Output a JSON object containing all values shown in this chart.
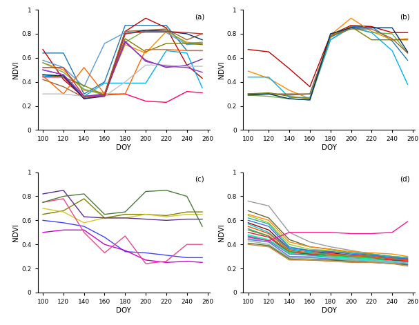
{
  "doy": [
    100,
    120,
    140,
    160,
    180,
    200,
    220,
    240,
    255
  ],
  "subplot_labels": [
    "(a)",
    "(b)",
    "(c)",
    "(d)"
  ],
  "xlabel": "DOY",
  "ylabel": "NDVI",
  "xlim_left": [
    95,
    262
  ],
  "xlim_right": [
    95,
    270
  ],
  "ylim": [
    0,
    1
  ],
  "xticks": [
    100,
    120,
    140,
    160,
    180,
    200,
    220,
    240,
    260
  ],
  "yticks": [
    0,
    0.2,
    0.4,
    0.6,
    0.8,
    1
  ],
  "series_a": [
    {
      "color": "#1F77B4",
      "y": [
        0.64,
        0.64,
        0.3,
        0.4,
        0.87,
        0.87,
        0.87,
        0.66,
        0.66
      ]
    },
    {
      "color": "#c00000",
      "y": [
        0.67,
        0.42,
        0.27,
        0.3,
        0.82,
        0.93,
        0.85,
        0.54,
        0.43
      ]
    },
    {
      "color": "#FF8C00",
      "y": [
        0.56,
        0.5,
        0.33,
        0.31,
        0.71,
        0.64,
        0.82,
        0.73,
        0.72
      ]
    },
    {
      "color": "#5B9BD5",
      "y": [
        0.58,
        0.52,
        0.36,
        0.72,
        0.81,
        0.81,
        0.81,
        0.71,
        0.72
      ]
    },
    {
      "color": "#70AD47",
      "y": [
        0.56,
        0.48,
        0.34,
        0.29,
        0.73,
        0.83,
        0.83,
        0.72,
        0.73
      ]
    },
    {
      "color": "#7030A0",
      "y": [
        0.5,
        0.46,
        0.28,
        0.3,
        0.73,
        0.58,
        0.52,
        0.54,
        0.59
      ]
    },
    {
      "color": "#00B0F0",
      "y": [
        0.45,
        0.44,
        0.28,
        0.39,
        0.39,
        0.39,
        0.66,
        0.64,
        0.35
      ]
    },
    {
      "color": "#FF0066",
      "y": [
        0.44,
        0.44,
        0.26,
        0.29,
        0.3,
        0.24,
        0.23,
        0.32,
        0.31
      ]
    },
    {
      "color": "#996633",
      "y": [
        0.42,
        0.36,
        0.27,
        0.3,
        0.82,
        0.83,
        0.84,
        0.75,
        0.8
      ]
    },
    {
      "color": "#808000",
      "y": [
        0.46,
        0.44,
        0.37,
        0.29,
        0.76,
        0.65,
        0.72,
        0.72,
        0.71
      ]
    },
    {
      "color": "#FF6600",
      "y": [
        0.45,
        0.3,
        0.52,
        0.3,
        0.3,
        0.67,
        0.67,
        0.66,
        0.66
      ]
    },
    {
      "color": "#C0C0C0",
      "y": [
        0.3,
        0.3,
        0.28,
        0.28,
        0.4,
        0.54,
        0.54,
        0.53,
        0.53
      ]
    },
    {
      "color": "#9933CC",
      "y": [
        0.5,
        0.46,
        0.28,
        0.29,
        0.74,
        0.57,
        0.53,
        0.52,
        0.48
      ]
    },
    {
      "color": "#003366",
      "y": [
        0.46,
        0.45,
        0.26,
        0.28,
        0.8,
        0.83,
        0.82,
        0.8,
        0.75
      ]
    },
    {
      "color": "#CC3333",
      "y": [
        0.52,
        0.52,
        0.28,
        0.28,
        0.8,
        0.82,
        0.82,
        0.81,
        0.8
      ]
    }
  ],
  "series_b": [
    {
      "color": "#1F77B4",
      "y": [
        0.3,
        0.3,
        0.29,
        0.3,
        0.77,
        0.86,
        0.86,
        0.74,
        0.58
      ]
    },
    {
      "color": "#c00000",
      "y": [
        0.67,
        0.65,
        0.51,
        0.36,
        0.79,
        0.87,
        0.86,
        0.81,
        0.81
      ]
    },
    {
      "color": "#FF8C00",
      "y": [
        0.49,
        0.43,
        0.33,
        0.26,
        0.79,
        0.93,
        0.82,
        0.75,
        0.76
      ]
    },
    {
      "color": "#70AD47",
      "y": [
        0.29,
        0.28,
        0.26,
        0.25,
        0.75,
        0.85,
        0.81,
        0.8,
        0.64
      ]
    },
    {
      "color": "#00B0F0",
      "y": [
        0.44,
        0.44,
        0.27,
        0.27,
        0.75,
        0.86,
        0.81,
        0.66,
        0.38
      ]
    },
    {
      "color": "#996633",
      "y": [
        0.3,
        0.3,
        0.3,
        0.3,
        0.78,
        0.84,
        0.84,
        0.76,
        0.64
      ]
    },
    {
      "color": "#808000",
      "y": [
        0.3,
        0.31,
        0.28,
        0.26,
        0.78,
        0.86,
        0.75,
        0.75,
        0.75
      ]
    },
    {
      "color": "#003366",
      "y": [
        0.29,
        0.3,
        0.26,
        0.25,
        0.8,
        0.85,
        0.85,
        0.85,
        0.65
      ]
    }
  ],
  "series_c": [
    {
      "color": "#4040FF",
      "y": [
        0.6,
        0.58,
        0.55,
        0.46,
        0.34,
        0.33,
        0.31,
        0.29,
        0.29
      ]
    },
    {
      "color": "#808000",
      "y": [
        0.65,
        0.68,
        0.78,
        0.62,
        0.65,
        0.65,
        0.64,
        0.67,
        0.67
      ]
    },
    {
      "color": "#D4C829",
      "y": [
        0.7,
        0.67,
        0.58,
        0.62,
        0.62,
        0.65,
        0.63,
        0.65,
        0.65
      ]
    },
    {
      "color": "#5B2D8E",
      "y": [
        0.82,
        0.85,
        0.63,
        0.62,
        0.62,
        0.61,
        0.6,
        0.61,
        0.61
      ]
    },
    {
      "color": "#CC00CC",
      "y": [
        0.5,
        0.52,
        0.52,
        0.4,
        0.35,
        0.27,
        0.25,
        0.26,
        0.25
      ]
    },
    {
      "color": "#E8488A",
      "y": [
        0.75,
        0.78,
        0.5,
        0.33,
        0.47,
        0.24,
        0.26,
        0.4,
        0.4
      ]
    },
    {
      "color": "#4B7A3A",
      "y": [
        0.75,
        0.8,
        0.82,
        0.65,
        0.67,
        0.84,
        0.85,
        0.8,
        0.55
      ]
    }
  ],
  "series_d": [
    {
      "color": "#999999",
      "y": [
        0.76,
        0.72,
        0.5,
        0.42,
        0.38,
        0.35,
        0.32,
        0.3,
        0.29
      ]
    },
    {
      "color": "#666633",
      "y": [
        0.68,
        0.62,
        0.44,
        0.38,
        0.36,
        0.33,
        0.31,
        0.29,
        0.28
      ]
    },
    {
      "color": "#FF8C00",
      "y": [
        0.65,
        0.6,
        0.42,
        0.38,
        0.36,
        0.34,
        0.33,
        0.32,
        0.3
      ]
    },
    {
      "color": "#9ACD32",
      "y": [
        0.64,
        0.58,
        0.4,
        0.36,
        0.35,
        0.33,
        0.32,
        0.3,
        0.29
      ]
    },
    {
      "color": "#20B2AA",
      "y": [
        0.62,
        0.57,
        0.38,
        0.35,
        0.34,
        0.33,
        0.32,
        0.3,
        0.29
      ]
    },
    {
      "color": "#4169E1",
      "y": [
        0.6,
        0.55,
        0.37,
        0.35,
        0.34,
        0.32,
        0.31,
        0.29,
        0.28
      ]
    },
    {
      "color": "#8B0000",
      "y": [
        0.58,
        0.52,
        0.36,
        0.34,
        0.33,
        0.31,
        0.3,
        0.28,
        0.27
      ]
    },
    {
      "color": "#00CED1",
      "y": [
        0.57,
        0.5,
        0.36,
        0.34,
        0.32,
        0.31,
        0.3,
        0.28,
        0.27
      ]
    },
    {
      "color": "#FF4500",
      "y": [
        0.55,
        0.49,
        0.35,
        0.33,
        0.32,
        0.31,
        0.3,
        0.28,
        0.27
      ]
    },
    {
      "color": "#3CB371",
      "y": [
        0.53,
        0.47,
        0.34,
        0.33,
        0.31,
        0.3,
        0.29,
        0.27,
        0.26
      ]
    },
    {
      "color": "#6B8E23",
      "y": [
        0.52,
        0.47,
        0.34,
        0.32,
        0.31,
        0.3,
        0.29,
        0.27,
        0.26
      ]
    },
    {
      "color": "#DC143C",
      "y": [
        0.5,
        0.46,
        0.33,
        0.32,
        0.3,
        0.29,
        0.28,
        0.27,
        0.26
      ]
    },
    {
      "color": "#00FA9A",
      "y": [
        0.48,
        0.44,
        0.33,
        0.31,
        0.3,
        0.29,
        0.28,
        0.26,
        0.25
      ]
    },
    {
      "color": "#4682B4",
      "y": [
        0.47,
        0.43,
        0.32,
        0.31,
        0.29,
        0.28,
        0.27,
        0.26,
        0.25
      ]
    },
    {
      "color": "#FF1493",
      "y": [
        0.46,
        0.43,
        0.5,
        0.5,
        0.5,
        0.49,
        0.49,
        0.5,
        0.59
      ]
    },
    {
      "color": "#40E0D0",
      "y": [
        0.45,
        0.42,
        0.3,
        0.3,
        0.29,
        0.28,
        0.27,
        0.26,
        0.25
      ]
    },
    {
      "color": "#7B68EE",
      "y": [
        0.44,
        0.42,
        0.3,
        0.29,
        0.28,
        0.27,
        0.26,
        0.25,
        0.24
      ]
    },
    {
      "color": "#8FBC8F",
      "y": [
        0.43,
        0.4,
        0.29,
        0.28,
        0.27,
        0.27,
        0.26,
        0.25,
        0.23
      ]
    },
    {
      "color": "#556B2F",
      "y": [
        0.41,
        0.39,
        0.28,
        0.27,
        0.27,
        0.26,
        0.25,
        0.24,
        0.23
      ]
    },
    {
      "color": "#CD853F",
      "y": [
        0.4,
        0.38,
        0.27,
        0.27,
        0.26,
        0.25,
        0.25,
        0.24,
        0.22
      ]
    }
  ],
  "bg_color": "#ffffff",
  "line_width": 1.0
}
